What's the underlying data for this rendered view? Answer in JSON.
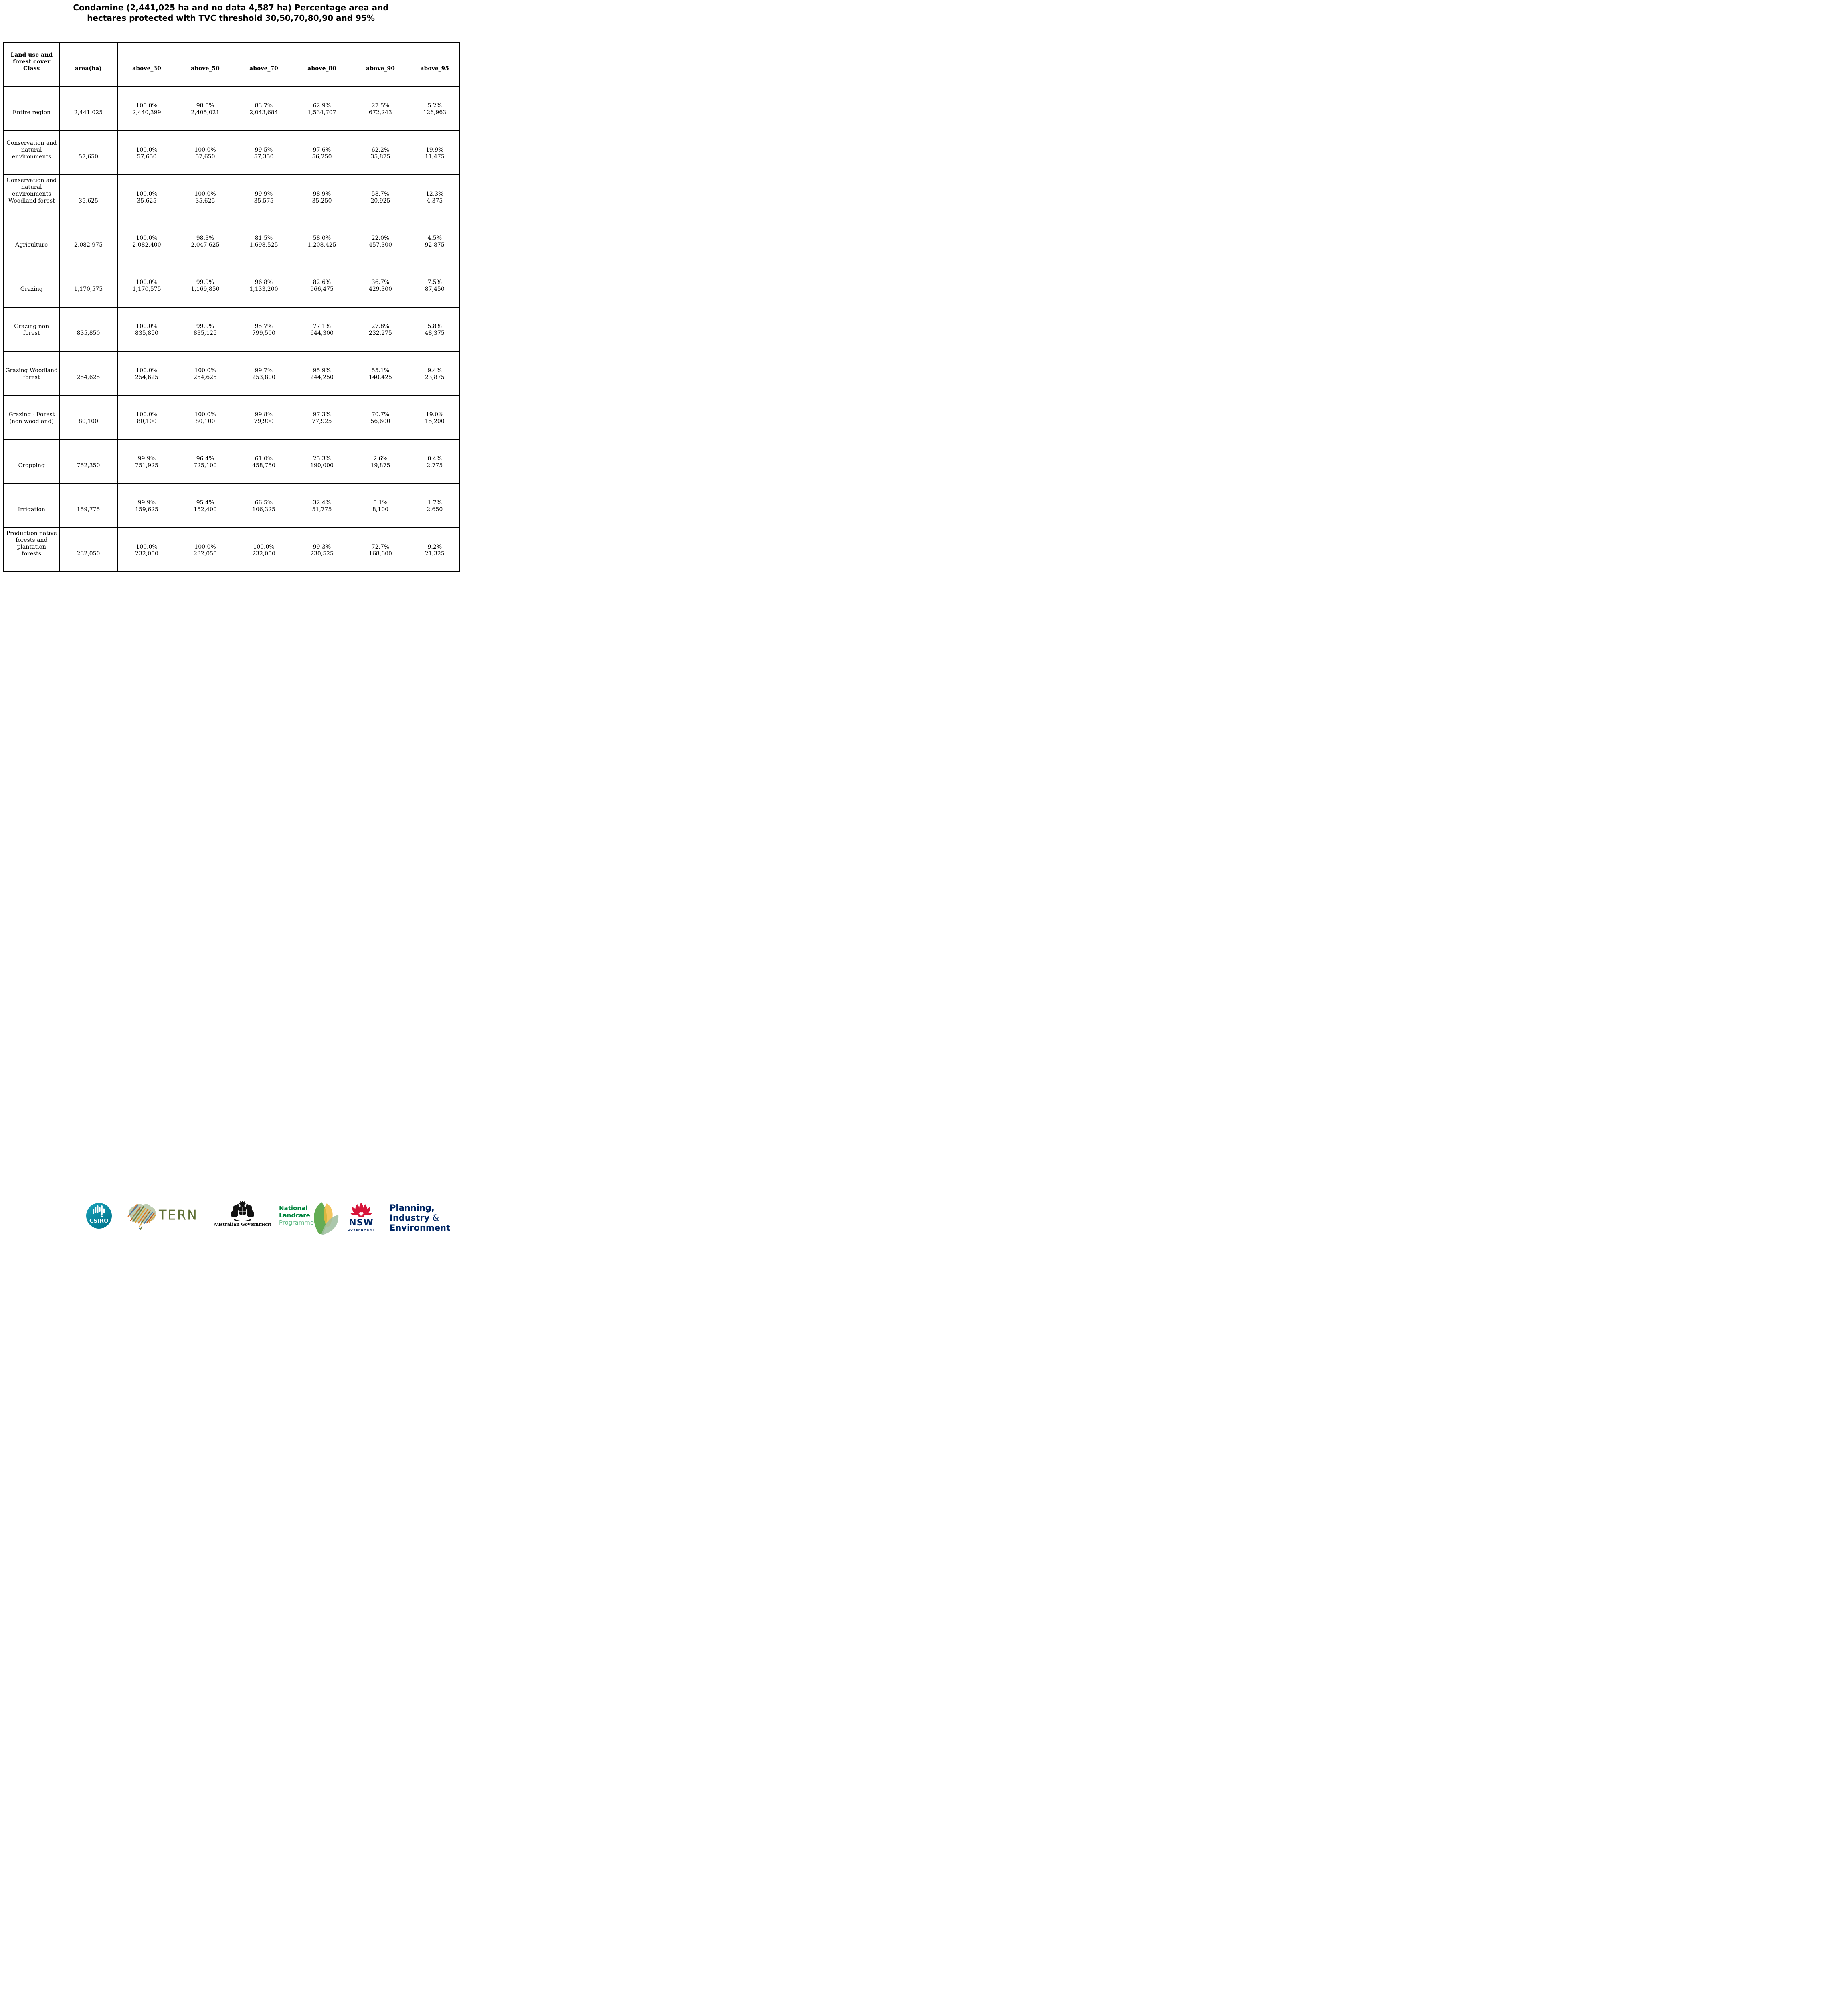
{
  "title": {
    "line1": "Condamine (2,441,025 ha and no data 4,587 ha) Percentage area and",
    "line2": "hectares protected with TVC threshold 30,50,70,80,90 and 95%"
  },
  "table": {
    "header": {
      "class_lines": [
        "Land use and",
        "forest cover",
        "Class"
      ],
      "cols": [
        "area(ha)",
        "above_30",
        "above_50",
        "above_70",
        "above_80",
        "above_90",
        "above_95"
      ]
    },
    "rows": [
      {
        "label_lines": [
          "Entire region"
        ],
        "area": "2,441,025",
        "values": [
          {
            "pct": "100.0%",
            "ha": "2,440,399"
          },
          {
            "pct": "98.5%",
            "ha": "2,405,021"
          },
          {
            "pct": "83.7%",
            "ha": "2,043,684"
          },
          {
            "pct": "62.9%",
            "ha": "1,534,707"
          },
          {
            "pct": "27.5%",
            "ha": "672,243"
          },
          {
            "pct": "5.2%",
            "ha": "126,963"
          }
        ]
      },
      {
        "label_lines": [
          "Conservation and",
          "natural",
          "environments"
        ],
        "area": "57,650",
        "values": [
          {
            "pct": "100.0%",
            "ha": "57,650"
          },
          {
            "pct": "100.0%",
            "ha": "57,650"
          },
          {
            "pct": "99.5%",
            "ha": "57,350"
          },
          {
            "pct": "97.6%",
            "ha": "56,250"
          },
          {
            "pct": "62.2%",
            "ha": "35,875"
          },
          {
            "pct": "19.9%",
            "ha": "11,475"
          }
        ]
      },
      {
        "label_lines": [
          "Conservation and",
          "natural",
          "environments",
          "Woodland forest"
        ],
        "area": "35,625",
        "values": [
          {
            "pct": "100.0%",
            "ha": "35,625"
          },
          {
            "pct": "100.0%",
            "ha": "35,625"
          },
          {
            "pct": "99.9%",
            "ha": "35,575"
          },
          {
            "pct": "98.9%",
            "ha": "35,250"
          },
          {
            "pct": "58.7%",
            "ha": "20,925"
          },
          {
            "pct": "12.3%",
            "ha": "4,375"
          }
        ]
      },
      {
        "label_lines": [
          "Agriculture"
        ],
        "area": "2,082,975",
        "values": [
          {
            "pct": "100.0%",
            "ha": "2,082,400"
          },
          {
            "pct": "98.3%",
            "ha": "2,047,625"
          },
          {
            "pct": "81.5%",
            "ha": "1,698,525"
          },
          {
            "pct": "58.0%",
            "ha": "1,208,425"
          },
          {
            "pct": "22.0%",
            "ha": "457,300"
          },
          {
            "pct": "4.5%",
            "ha": "92,875"
          }
        ]
      },
      {
        "label_lines": [
          "Grazing"
        ],
        "area": "1,170,575",
        "values": [
          {
            "pct": "100.0%",
            "ha": "1,170,575"
          },
          {
            "pct": "99.9%",
            "ha": "1,169,850"
          },
          {
            "pct": "96.8%",
            "ha": "1,133,200"
          },
          {
            "pct": "82.6%",
            "ha": "966,475"
          },
          {
            "pct": "36.7%",
            "ha": "429,300"
          },
          {
            "pct": "7.5%",
            "ha": "87,450"
          }
        ]
      },
      {
        "label_lines": [
          "Grazing non",
          "forest"
        ],
        "area": "835,850",
        "values": [
          {
            "pct": "100.0%",
            "ha": "835,850"
          },
          {
            "pct": "99.9%",
            "ha": "835,125"
          },
          {
            "pct": "95.7%",
            "ha": "799,500"
          },
          {
            "pct": "77.1%",
            "ha": "644,300"
          },
          {
            "pct": "27.8%",
            "ha": "232,275"
          },
          {
            "pct": "5.8%",
            "ha": "48,375"
          }
        ]
      },
      {
        "label_lines": [
          "Grazing Woodland",
          "forest"
        ],
        "area": "254,625",
        "values": [
          {
            "pct": "100.0%",
            "ha": "254,625"
          },
          {
            "pct": "100.0%",
            "ha": "254,625"
          },
          {
            "pct": "99.7%",
            "ha": "253,800"
          },
          {
            "pct": "95.9%",
            "ha": "244,250"
          },
          {
            "pct": "55.1%",
            "ha": "140,425"
          },
          {
            "pct": "9.4%",
            "ha": "23,875"
          }
        ]
      },
      {
        "label_lines": [
          "Grazing - Forest",
          "(non woodland)"
        ],
        "area": "80,100",
        "values": [
          {
            "pct": "100.0%",
            "ha": "80,100"
          },
          {
            "pct": "100.0%",
            "ha": "80,100"
          },
          {
            "pct": "99.8%",
            "ha": "79,900"
          },
          {
            "pct": "97.3%",
            "ha": "77,925"
          },
          {
            "pct": "70.7%",
            "ha": "56,600"
          },
          {
            "pct": "19.0%",
            "ha": "15,200"
          }
        ]
      },
      {
        "label_lines": [
          "Cropping"
        ],
        "area": "752,350",
        "values": [
          {
            "pct": "99.9%",
            "ha": "751,925"
          },
          {
            "pct": "96.4%",
            "ha": "725,100"
          },
          {
            "pct": "61.0%",
            "ha": "458,750"
          },
          {
            "pct": "25.3%",
            "ha": "190,000"
          },
          {
            "pct": "2.6%",
            "ha": "19,875"
          },
          {
            "pct": "0.4%",
            "ha": "2,775"
          }
        ]
      },
      {
        "label_lines": [
          "Irrigation"
        ],
        "area": "159,775",
        "values": [
          {
            "pct": "99.9%",
            "ha": "159,625"
          },
          {
            "pct": "95.4%",
            "ha": "152,400"
          },
          {
            "pct": "66.5%",
            "ha": "106,325"
          },
          {
            "pct": "32.4%",
            "ha": "51,775"
          },
          {
            "pct": "5.1%",
            "ha": "8,100"
          },
          {
            "pct": "1.7%",
            "ha": "2,650"
          }
        ]
      },
      {
        "label_lines": [
          "Production native",
          "forests and",
          "plantation",
          "forests"
        ],
        "area": "232,050",
        "values": [
          {
            "pct": "100.0%",
            "ha": "232,050"
          },
          {
            "pct": "100.0%",
            "ha": "232,050"
          },
          {
            "pct": "100.0%",
            "ha": "232,050"
          },
          {
            "pct": "99.3%",
            "ha": "230,525"
          },
          {
            "pct": "72.7%",
            "ha": "168,600"
          },
          {
            "pct": "9.2%",
            "ha": "21,325"
          }
        ]
      }
    ]
  },
  "footer": {
    "csiro_label": "CSIRO",
    "tern_label": "TERN",
    "ausgov_label": "Australian Government",
    "landcare": {
      "line1": "National",
      "line2": "Landcare",
      "line3": "Programme"
    },
    "nsw": {
      "label": "NSW",
      "sub": "GOVERNMENT"
    },
    "planning": {
      "line1": "Planning,",
      "line2_word": "Industry ",
      "line2_amp": "&",
      "line3": "Environment"
    },
    "colors": {
      "csiro_teal": "#0b8fa5",
      "tern_olive": "#5f7036",
      "landcare_green": "#00843d",
      "landcare_light_green": "#5cb882",
      "nsw_red": "#d7153a",
      "nsw_navy": "#002664"
    }
  }
}
